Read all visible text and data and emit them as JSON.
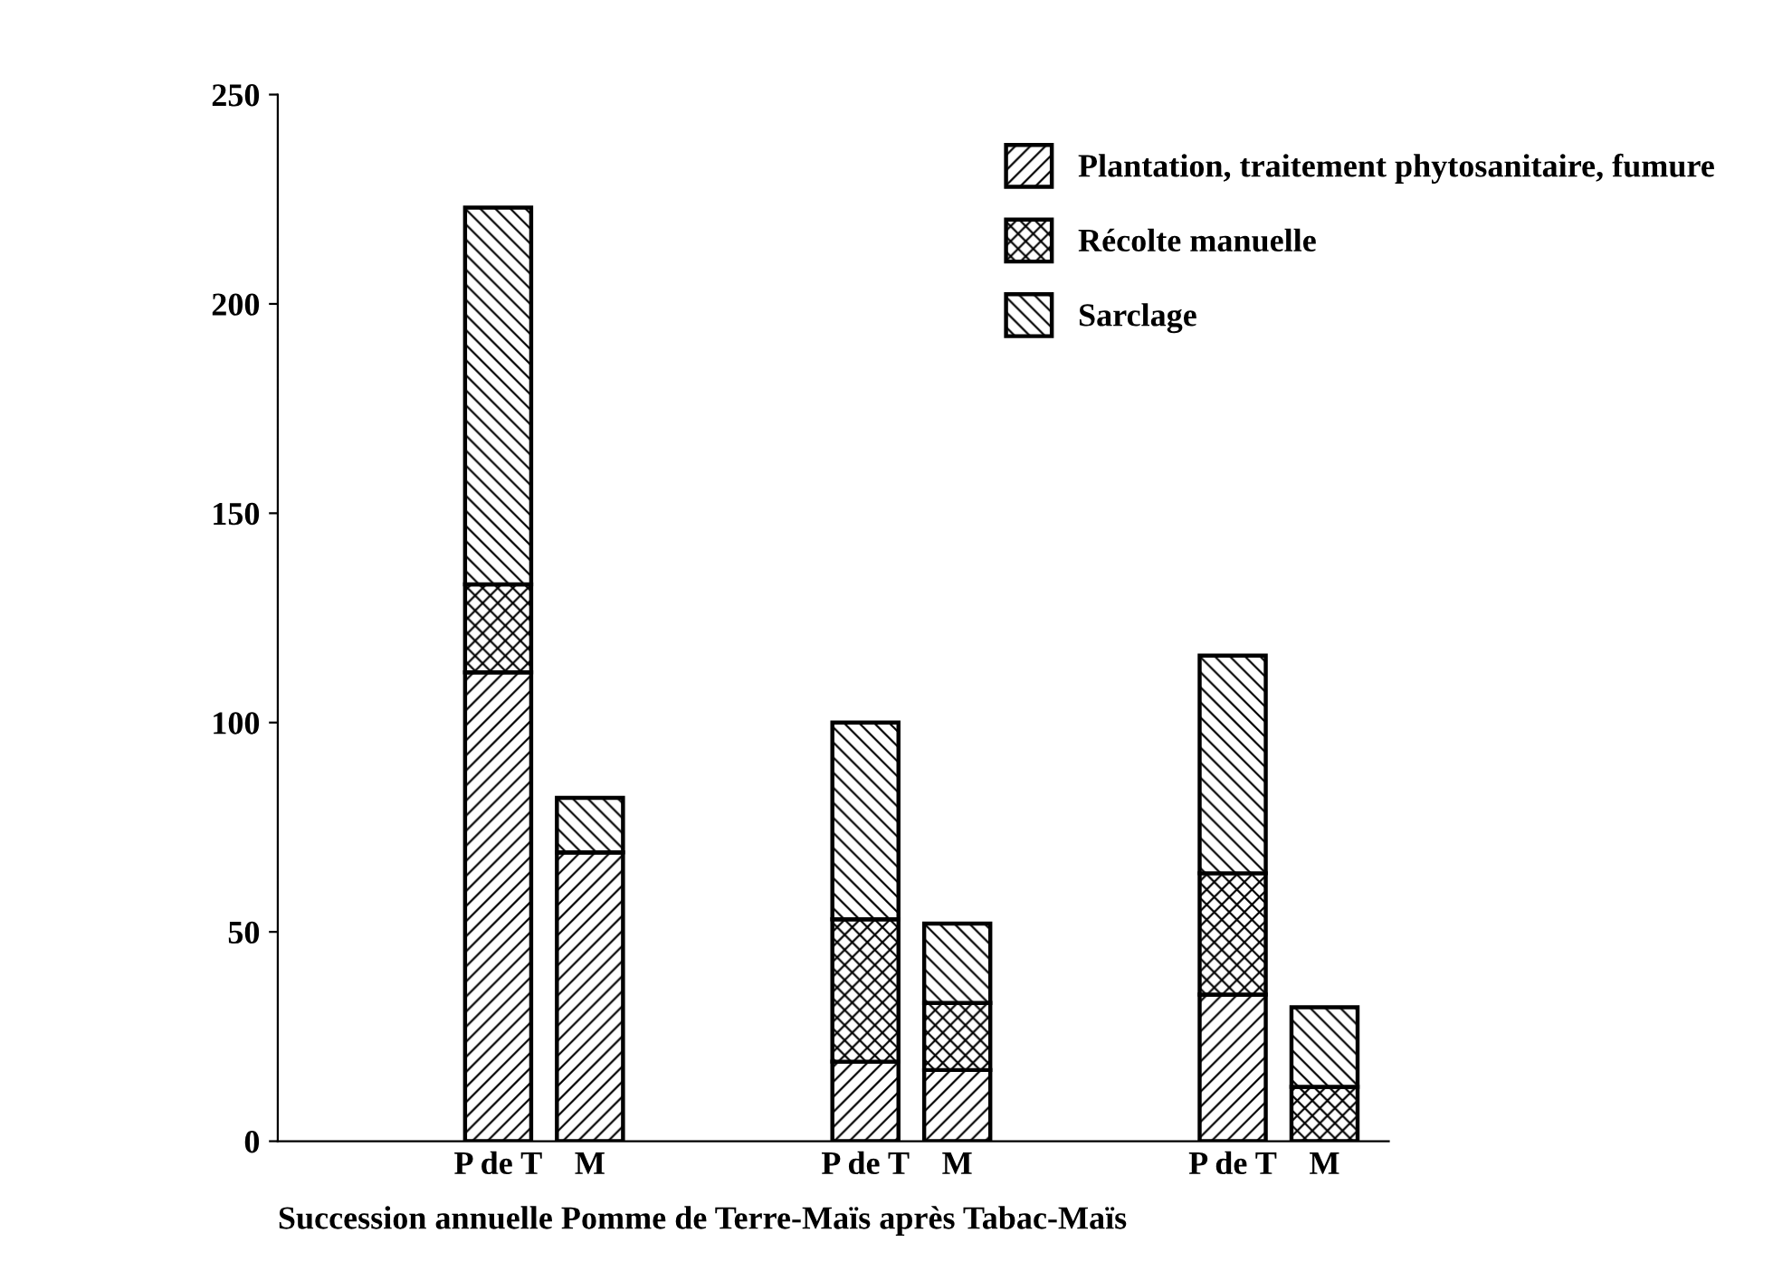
{
  "chart_data": {
    "type": "bar",
    "stacked": true,
    "xlabel": "Succession annuelle Pomme de Terre-Maïs après Tabac-Maïs",
    "categories": [
      null,
      "P de T",
      "M",
      null,
      null,
      "P de T",
      "M",
      null,
      null,
      "P de T",
      "M"
    ],
    "series": [
      {
        "name": "Plantation, traitement phytosanitaire, fumure",
        "color": "#000000",
        "values": [
          null,
          112,
          69,
          null,
          null,
          19,
          17,
          null,
          null,
          35,
          0
        ]
      },
      {
        "name": "Récolte manuelle",
        "color": "#000000",
        "values": [
          null,
          21,
          0,
          null,
          null,
          34,
          16,
          null,
          null,
          29,
          13
        ]
      },
      {
        "name": "Sarclage",
        "color": "#000000",
        "values": [
          null,
          90,
          13,
          null,
          null,
          47,
          19,
          null,
          null,
          52,
          19
        ]
      }
    ],
    "ylim": [
      0,
      250
    ],
    "yticks": [
      0,
      50,
      100,
      150,
      200,
      250
    ],
    "grid": false,
    "legend": "top right"
  }
}
